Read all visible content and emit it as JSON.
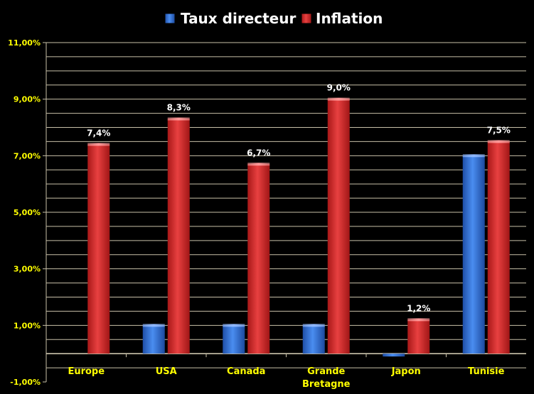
{
  "chart_data": {
    "type": "bar",
    "categories": [
      "Europe",
      "USA",
      "Canada",
      "Grande Bretagne",
      "Japon",
      "Tunisie"
    ],
    "category_lines": [
      [
        "Europe"
      ],
      [
        "USA"
      ],
      [
        "Canada"
      ],
      [
        "Grande",
        "Bretagne"
      ],
      [
        "Japon"
      ],
      [
        "Tunisie"
      ]
    ],
    "series": [
      {
        "name": "Taux directeur",
        "color": "#2f6fd6",
        "values": [
          0.0,
          1.0,
          1.0,
          1.0,
          -0.1,
          7.0
        ],
        "labels": [
          "",
          "",
          "",
          "",
          "",
          ""
        ]
      },
      {
        "name": "Inflation",
        "color": "#d42a2a",
        "values": [
          7.4,
          8.3,
          6.7,
          9.0,
          1.2,
          7.5
        ],
        "labels": [
          "7,4%",
          "8,3%",
          "6,7%",
          "9,0%",
          "1,2%",
          "7,5%"
        ]
      }
    ],
    "yticks": [
      -1,
      1,
      3,
      5,
      7,
      9,
      11
    ],
    "ytick_labels": [
      "-1,00%",
      "1,00%",
      "3,00%",
      "5,00%",
      "7,00%",
      "9,00%",
      "11,00%"
    ],
    "ylim": [
      -1,
      11
    ],
    "gridline_step": 0.5,
    "grid": true,
    "legend_position": "top",
    "title": "",
    "xlabel": "",
    "ylabel": ""
  }
}
